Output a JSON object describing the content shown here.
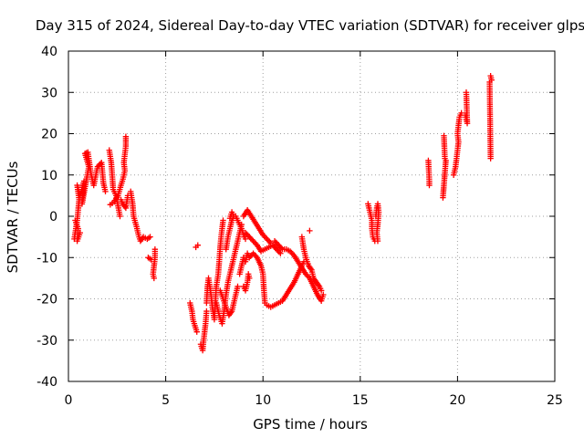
{
  "chart_data": {
    "type": "scatter",
    "title": "Day 315 of 2024, Sidereal Day-to-day VTEC variation (SDTVAR) for receiver glps",
    "xlabel": "GPS time / hours",
    "ylabel": "SDTVAR / TECUs",
    "xlim": [
      0,
      25
    ],
    "ylim": [
      -40,
      40
    ],
    "xticks": [
      0,
      5,
      10,
      15,
      20,
      25
    ],
    "yticks": [
      -40,
      -30,
      -20,
      -10,
      0,
      10,
      20,
      30,
      40
    ],
    "grid": true,
    "marker": "+",
    "color": "#ff0000",
    "series": [
      {
        "name": "glps",
        "segments": [
          [
            [
              0.3,
              -5.5
            ],
            [
              0.45,
              -1
            ],
            [
              0.55,
              4
            ],
            [
              0.45,
              7.5
            ],
            [
              0.6,
              5
            ],
            [
              0.8,
              8.5
            ],
            [
              0.7,
              3
            ],
            [
              0.95,
              9.5
            ],
            [
              1.05,
              12
            ],
            [
              0.85,
              15.2
            ],
            [
              1.0,
              15.5
            ],
            [
              1.15,
              10.5
            ],
            [
              1.3,
              7.5
            ],
            [
              1.5,
              12
            ],
            [
              1.7,
              13
            ],
            [
              1.8,
              8
            ],
            [
              1.9,
              6
            ]
          ],
          [
            [
              0.35,
              -1
            ],
            [
              0.5,
              -3
            ],
            [
              0.45,
              -6
            ],
            [
              0.6,
              -4
            ]
          ],
          [
            [
              2.1,
              16
            ],
            [
              2.2,
              13
            ],
            [
              2.25,
              10
            ],
            [
              2.3,
              6.5
            ],
            [
              2.45,
              5
            ],
            [
              2.55,
              2.5
            ],
            [
              2.65,
              0
            ]
          ],
          [
            [
              2.15,
              2.8
            ],
            [
              2.35,
              3.5
            ],
            [
              2.55,
              5
            ],
            [
              2.7,
              7.5
            ],
            [
              2.8,
              9
            ],
            [
              2.9,
              11
            ],
            [
              2.85,
              13
            ],
            [
              2.9,
              15
            ],
            [
              2.95,
              17
            ],
            [
              2.95,
              19.3
            ]
          ],
          [
            [
              2.7,
              4
            ],
            [
              2.8,
              3
            ],
            [
              2.95,
              2
            ],
            [
              3.05,
              5
            ]
          ],
          [
            [
              3.2,
              6
            ],
            [
              3.3,
              3
            ],
            [
              3.35,
              0
            ],
            [
              3.5,
              -2.5
            ],
            [
              3.6,
              -4.5
            ],
            [
              3.7,
              -6
            ],
            [
              3.85,
              -5
            ],
            [
              4.05,
              -5.5
            ],
            [
              4.2,
              -5
            ]
          ],
          [
            [
              4.1,
              -10
            ],
            [
              4.25,
              -10.5
            ]
          ],
          [
            [
              4.45,
              -8
            ],
            [
              4.45,
              -10
            ],
            [
              4.4,
              -12
            ],
            [
              4.35,
              -14
            ],
            [
              4.4,
              -15
            ]
          ],
          [
            [
              6.25,
              -21
            ],
            [
              6.35,
              -23
            ],
            [
              6.4,
              -25
            ],
            [
              6.5,
              -26.5
            ],
            [
              6.6,
              -28
            ]
          ],
          [
            [
              6.55,
              -7.5
            ],
            [
              6.65,
              -7
            ]
          ],
          [
            [
              6.8,
              -31
            ],
            [
              6.9,
              -32.5
            ],
            [
              6.95,
              -30
            ],
            [
              7.0,
              -28
            ],
            [
              7.05,
              -26
            ],
            [
              7.1,
              -23
            ]
          ],
          [
            [
              7.1,
              -21
            ],
            [
              7.15,
              -17
            ],
            [
              7.2,
              -15
            ],
            [
              7.3,
              -18
            ],
            [
              7.4,
              -22
            ],
            [
              7.5,
              -25
            ],
            [
              7.55,
              -21
            ],
            [
              7.6,
              -17
            ],
            [
              7.7,
              -14
            ],
            [
              7.75,
              -11
            ],
            [
              7.8,
              -7.5
            ],
            [
              7.85,
              -5
            ],
            [
              7.9,
              -3
            ],
            [
              7.95,
              -1
            ]
          ],
          [
            [
              7.6,
              -21
            ],
            [
              7.75,
              -24
            ],
            [
              7.9,
              -26
            ],
            [
              8.0,
              -23
            ],
            [
              8.1,
              -19
            ],
            [
              8.2,
              -16
            ],
            [
              8.3,
              -14
            ],
            [
              8.4,
              -12
            ],
            [
              8.5,
              -10
            ],
            [
              8.6,
              -8
            ],
            [
              8.7,
              -6
            ],
            [
              8.8,
              -4
            ],
            [
              8.9,
              -2
            ]
          ],
          [
            [
              7.8,
              -18
            ],
            [
              7.95,
              -20
            ],
            [
              8.1,
              -22
            ],
            [
              8.25,
              -24
            ],
            [
              8.4,
              -23
            ],
            [
              8.55,
              -20
            ],
            [
              8.7,
              -17
            ]
          ],
          [
            [
              8.1,
              -8
            ],
            [
              8.2,
              -5
            ],
            [
              8.3,
              -3
            ],
            [
              8.4,
              -1
            ],
            [
              8.5,
              0
            ],
            [
              8.4,
              1
            ],
            [
              8.3,
              -0.5
            ]
          ],
          [
            [
              8.8,
              -14
            ],
            [
              8.9,
              -12
            ],
            [
              9.0,
              -10
            ],
            [
              9.1,
              -11
            ],
            [
              9.2,
              -9
            ],
            [
              9.3,
              -10
            ],
            [
              9.5,
              -9
            ],
            [
              9.7,
              -10
            ],
            [
              9.9,
              -12
            ],
            [
              10.0,
              -14
            ],
            [
              10.05,
              -18
            ],
            [
              10.1,
              -21
            ]
          ],
          [
            [
              9.0,
              -17
            ],
            [
              9.1,
              -18
            ],
            [
              9.2,
              -16
            ],
            [
              9.25,
              -14
            ],
            [
              9.3,
              -15
            ]
          ],
          [
            [
              9.1,
              -4
            ],
            [
              9.3,
              -5
            ],
            [
              9.5,
              -6
            ],
            [
              9.7,
              -7
            ],
            [
              9.9,
              -8.5
            ],
            [
              10.1,
              -8
            ],
            [
              10.3,
              -7.5
            ],
            [
              10.5,
              -7
            ],
            [
              10.7,
              -8
            ],
            [
              10.9,
              -9
            ]
          ],
          [
            [
              10.2,
              -21.5
            ],
            [
              10.4,
              -22
            ],
            [
              10.6,
              -21.5
            ],
            [
              10.8,
              -21
            ],
            [
              11.0,
              -20.5
            ],
            [
              11.2,
              -19
            ],
            [
              11.4,
              -17.5
            ],
            [
              11.6,
              -16
            ],
            [
              11.8,
              -14
            ],
            [
              12.0,
              -12
            ],
            [
              12.1,
              -11
            ]
          ],
          [
            [
              8.6,
              0
            ],
            [
              8.7,
              -1
            ],
            [
              8.8,
              -2
            ],
            [
              8.9,
              -3
            ],
            [
              9.0,
              -4.5
            ],
            [
              9.1,
              -5.5
            ]
          ],
          [
            [
              9.0,
              0
            ],
            [
              9.2,
              1.5
            ],
            [
              9.4,
              0
            ],
            [
              9.6,
              -1.5
            ],
            [
              9.8,
              -3
            ],
            [
              10.0,
              -4.5
            ],
            [
              10.2,
              -5.5
            ],
            [
              10.4,
              -6.5
            ]
          ],
          [
            [
              10.6,
              -6
            ],
            [
              10.8,
              -7
            ],
            [
              11.0,
              -8
            ],
            [
              11.2,
              -8
            ],
            [
              11.4,
              -8.5
            ],
            [
              11.6,
              -9.5
            ],
            [
              11.8,
              -11
            ],
            [
              12.0,
              -12.5
            ],
            [
              12.2,
              -14
            ],
            [
              12.4,
              -15
            ],
            [
              12.6,
              -17
            ],
            [
              12.8,
              -19
            ],
            [
              13.0,
              -20.5
            ],
            [
              13.1,
              -19
            ]
          ],
          [
            [
              12.0,
              -5
            ],
            [
              12.1,
              -8
            ],
            [
              12.2,
              -10
            ],
            [
              12.35,
              -12
            ],
            [
              12.5,
              -13
            ],
            [
              12.6,
              -15
            ],
            [
              12.75,
              -16
            ],
            [
              12.9,
              -17
            ],
            [
              13.0,
              -18
            ]
          ],
          [
            [
              12.4,
              -3.5
            ]
          ],
          [
            [
              15.4,
              3
            ],
            [
              15.5,
              1
            ],
            [
              15.6,
              -1
            ],
            [
              15.6,
              -3
            ],
            [
              15.65,
              -5
            ],
            [
              15.75,
              -6
            ]
          ],
          [
            [
              15.8,
              0
            ],
            [
              15.85,
              2
            ],
            [
              15.9,
              3
            ],
            [
              15.95,
              1
            ],
            [
              15.9,
              -2
            ],
            [
              15.85,
              -4
            ],
            [
              15.9,
              -6
            ]
          ],
          [
            [
              18.5,
              13.5
            ],
            [
              18.55,
              8.5
            ],
            [
              18.55,
              7.5
            ]
          ],
          [
            [
              19.3,
              19.5
            ],
            [
              19.35,
              14
            ],
            [
              19.4,
              13.5
            ],
            [
              19.25,
              4.5
            ]
          ],
          [
            [
              19.8,
              10
            ],
            [
              19.9,
              12
            ],
            [
              19.95,
              14
            ],
            [
              20.0,
              16
            ],
            [
              20.05,
              18
            ],
            [
              20.0,
              20
            ],
            [
              20.05,
              22
            ],
            [
              20.1,
              24
            ],
            [
              20.2,
              25
            ]
          ],
          [
            [
              20.4,
              24.5
            ],
            [
              20.5,
              22.5
            ],
            [
              20.45,
              30
            ]
          ],
          [
            [
              21.7,
              34
            ],
            [
              21.75,
              33
            ],
            [
              21.65,
              32.5
            ],
            [
              21.7,
              14
            ]
          ]
        ]
      }
    ]
  }
}
